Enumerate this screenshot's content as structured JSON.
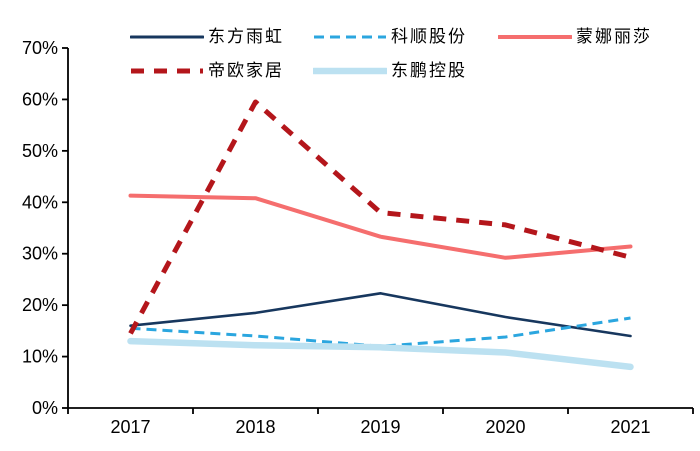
{
  "chart_data": {
    "type": "line",
    "title": "",
    "xlabel": "",
    "ylabel": "",
    "categories": [
      "2017",
      "2018",
      "2019",
      "2020",
      "2021"
    ],
    "ylim": [
      0,
      70
    ],
    "y_tick_step": 10,
    "y_tick_labels": [
      "0%",
      "10%",
      "20%",
      "30%",
      "40%",
      "50%",
      "60%",
      "70%"
    ],
    "grid": false,
    "legend_position": "top-left, two rows",
    "axis_color": "#000000",
    "series": [
      {
        "name": "东方雨虹",
        "values": [
          16,
          18.5,
          22.3,
          17.7,
          14
        ],
        "color": "#17375E",
        "style": "solid",
        "width": 2.6
      },
      {
        "name": "科顺股份",
        "values": [
          15.5,
          14,
          12,
          13.8,
          17.5
        ],
        "color": "#2BA6DF",
        "style": "dashed",
        "width": 3,
        "dash": "10 6"
      },
      {
        "name": "蒙娜丽莎",
        "values": [
          41.3,
          40.8,
          33.3,
          29.2,
          31.4
        ],
        "color": "#F56E6E",
        "style": "solid",
        "width": 4
      },
      {
        "name": "帝欧家居",
        "values": [
          14.5,
          59.5,
          38,
          35.6,
          29.3
        ],
        "color": "#B4161B",
        "style": "dashed",
        "width": 5,
        "dash": "13 10"
      },
      {
        "name": "东鹏控股",
        "values": [
          13,
          12.2,
          11.8,
          10.8,
          8
        ],
        "color": "#BCE1F1",
        "style": "solid",
        "width": 6.5
      }
    ]
  }
}
